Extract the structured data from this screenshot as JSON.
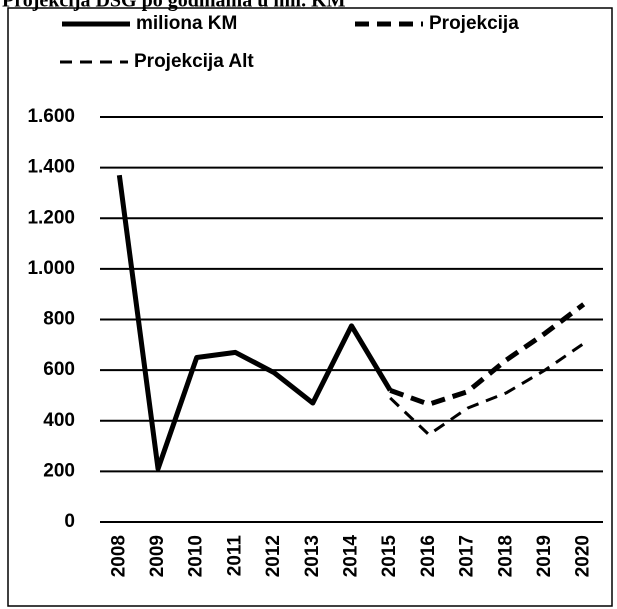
{
  "chart_data": {
    "type": "line",
    "title": "Projekcija DSG po godinama u mil. KM",
    "categories": [
      "2008",
      "2009",
      "2010",
      "2011",
      "2012",
      "2013",
      "2014",
      "2015",
      "2016",
      "2017",
      "2018",
      "2019",
      "2020"
    ],
    "series": [
      {
        "name": "miliona KM",
        "color": "#000000",
        "style": "solid",
        "values": [
          1370,
          210,
          650,
          670,
          590,
          470,
          775,
          520,
          null,
          null,
          null,
          null,
          null
        ]
      },
      {
        "name": "Projekcija",
        "color": "#000000",
        "style": "thick-dash",
        "values": [
          null,
          null,
          null,
          null,
          null,
          null,
          null,
          520,
          465,
          515,
          640,
          745,
          860
        ]
      },
      {
        "name": "Projekcija Alt",
        "color": "#000000",
        "style": "dash",
        "values": [
          null,
          null,
          null,
          null,
          null,
          null,
          null,
          490,
          345,
          450,
          510,
          600,
          705
        ]
      }
    ],
    "ylim": [
      0,
      1600
    ],
    "yticks": [
      0,
      200,
      400,
      600,
      800,
      {
        "value": 1000,
        "label": "1.000"
      },
      {
        "value": 1200,
        "label": "1.200"
      },
      {
        "value": 1400,
        "label": "1.400"
      },
      {
        "value": 1600,
        "label": "1.600"
      }
    ],
    "grid": true
  }
}
